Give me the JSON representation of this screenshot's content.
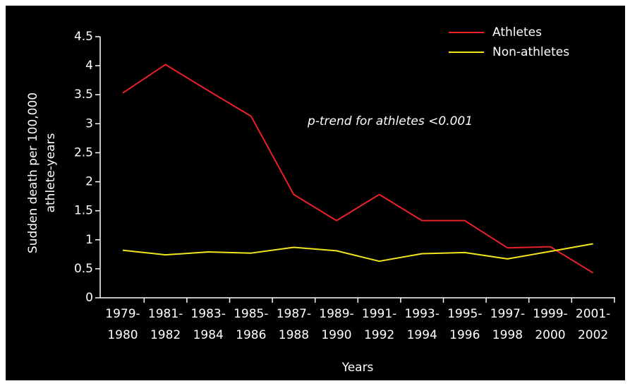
{
  "chart_data": {
    "type": "line",
    "ylabel": [
      "Sudden death per 100,000",
      "athlete-years"
    ],
    "xlabel": "Years",
    "annotation": "p-trend for athletes <0.001",
    "categories": [
      "1979- 1980",
      "1981- 1982",
      "1983- 1984",
      "1985- 1986",
      "1987- 1988",
      "1989- 1990",
      "1991- 1992",
      "1993- 1994",
      "1995- 1996",
      "1997- 1998",
      "1999- 2000",
      "2001- 2002"
    ],
    "series": [
      {
        "name": "Athletes",
        "color": "#e8202a",
        "values": [
          3.53,
          4.02,
          3.57,
          3.13,
          1.78,
          1.33,
          1.78,
          1.33,
          1.33,
          0.86,
          0.88,
          0.43
        ]
      },
      {
        "name": "Non-athletes",
        "color": "#f2e51c",
        "values": [
          0.82,
          0.74,
          0.79,
          0.77,
          0.87,
          0.81,
          0.63,
          0.76,
          0.78,
          0.67,
          0.8,
          0.93
        ]
      }
    ],
    "ylim": [
      0,
      4.5
    ],
    "yticks": [
      0,
      0.5,
      1,
      1.5,
      2,
      2.5,
      3,
      3.5,
      4,
      4.5
    ],
    "legend": "upper right"
  }
}
